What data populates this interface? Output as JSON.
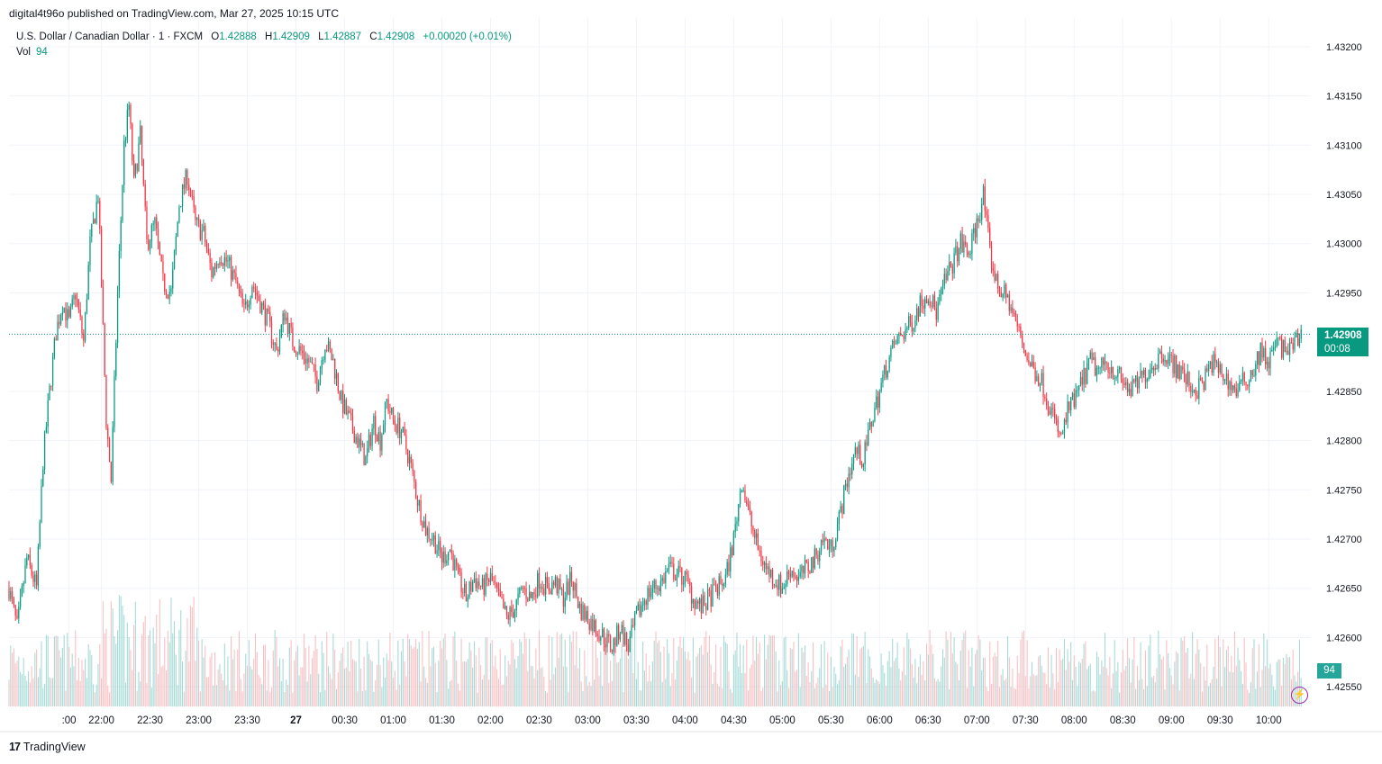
{
  "publisher": "digital4t96o published on TradingView.com, Mar 27, 2025 10:15 UTC",
  "legend": {
    "symbol": "U.S. Dollar / Canadian Dollar · 1 · FXCM",
    "o_label": "O",
    "o_val": "1.42888",
    "h_label": "H",
    "h_val": "1.42909",
    "l_label": "L",
    "l_val": "1.42887",
    "c_label": "C",
    "c_val": "1.42908",
    "change": "+0.00020 (+0.01%)"
  },
  "volume_legend": {
    "label": "Vol",
    "value": "94"
  },
  "price_tag": {
    "price": "1.42908",
    "countdown": "00:08"
  },
  "volume_tag": "94",
  "footer": {
    "logo_mark": "17",
    "logo_text": "TradingView"
  },
  "colors": {
    "up": "#089981",
    "down": "#f23645",
    "vol_up": "#80cbc4",
    "vol_down": "#f7a5a9",
    "grid": "#f0f3fa",
    "accent_purple": "#9c27b0"
  },
  "icons": {
    "lightning": "lightning-icon",
    "logo": "tradingview-logo-icon"
  },
  "chart_data": {
    "type": "candlestick",
    "interval": "1 minute",
    "ylim": [
      1.4253,
      1.4322
    ],
    "y_ticks": [
      "1.42550",
      "1.42600",
      "1.42650",
      "1.42700",
      "1.42750",
      "1.42800",
      "1.42850",
      "1.42950",
      "1.43000",
      "1.43050",
      "1.43100",
      "1.43150",
      "1.43200"
    ],
    "x_ticks": [
      ":00",
      "22:00",
      "22:30",
      "23:00",
      "23:30",
      "27",
      "00:30",
      "01:00",
      "01:30",
      "02:00",
      "02:30",
      "03:00",
      "03:30",
      "04:00",
      "04:30",
      "05:00",
      "05:30",
      "06:00",
      "06:30",
      "07:00",
      "07:30",
      "08:00",
      "08:30",
      "09:00",
      "09:30",
      "10:00"
    ],
    "x_tick_minutes": [
      -20,
      0,
      30,
      60,
      90,
      120,
      150,
      180,
      210,
      240,
      270,
      300,
      330,
      360,
      390,
      420,
      450,
      480,
      510,
      540,
      570,
      600,
      630,
      660,
      690,
      720
    ],
    "x_range_minutes": [
      -57,
      746
    ],
    "last_price": 1.42908,
    "close_path": [
      [
        -57,
        1.4265
      ],
      [
        -52,
        1.4261
      ],
      [
        -46,
        1.4268
      ],
      [
        -40,
        1.4265
      ],
      [
        -36,
        1.4278
      ],
      [
        -32,
        1.4285
      ],
      [
        -28,
        1.4291
      ],
      [
        -24,
        1.4294
      ],
      [
        -20,
        1.4292
      ],
      [
        -16,
        1.4295
      ],
      [
        -11,
        1.429
      ],
      [
        -7,
        1.43
      ],
      [
        -2,
        1.4305
      ],
      [
        3,
        1.4282
      ],
      [
        6,
        1.4276
      ],
      [
        10,
        1.4295
      ],
      [
        14,
        1.431
      ],
      [
        17,
        1.4314
      ],
      [
        20,
        1.4306
      ],
      [
        24,
        1.4311
      ],
      [
        28,
        1.43
      ],
      [
        33,
        1.4302
      ],
      [
        38,
        1.4296
      ],
      [
        43,
        1.4295
      ],
      [
        48,
        1.4304
      ],
      [
        53,
        1.4307
      ],
      [
        58,
        1.4302
      ],
      [
        63,
        1.4301
      ],
      [
        68,
        1.4297
      ],
      [
        73,
        1.4299
      ],
      [
        78,
        1.4298
      ],
      [
        83,
        1.4296
      ],
      [
        88,
        1.4293
      ],
      [
        93,
        1.4296
      ],
      [
        98,
        1.4294
      ],
      [
        103,
        1.4292
      ],
      [
        108,
        1.4289
      ],
      [
        113,
        1.4293
      ],
      [
        118,
        1.429
      ],
      [
        123,
        1.4289
      ],
      [
        128,
        1.4288
      ],
      [
        133,
        1.4286
      ],
      [
        138,
        1.429
      ],
      [
        143,
        1.4288
      ],
      [
        148,
        1.4284
      ],
      [
        153,
        1.4282
      ],
      [
        158,
        1.428
      ],
      [
        163,
        1.4278
      ],
      [
        168,
        1.4282
      ],
      [
        172,
        1.428
      ],
      [
        176,
        1.4284
      ],
      [
        180,
        1.4282
      ],
      [
        185,
        1.4281
      ],
      [
        190,
        1.4278
      ],
      [
        195,
        1.4274
      ],
      [
        200,
        1.4271
      ],
      [
        205,
        1.427
      ],
      [
        210,
        1.4268
      ],
      [
        215,
        1.4269
      ],
      [
        220,
        1.4266
      ],
      [
        225,
        1.4264
      ],
      [
        230,
        1.4266
      ],
      [
        235,
        1.4265
      ],
      [
        240,
        1.4266
      ],
      [
        245,
        1.4264
      ],
      [
        250,
        1.4262
      ],
      [
        255,
        1.4263
      ],
      [
        260,
        1.4265
      ],
      [
        265,
        1.4264
      ],
      [
        270,
        1.4266
      ],
      [
        275,
        1.4265
      ],
      [
        280,
        1.42655
      ],
      [
        285,
        1.4264
      ],
      [
        290,
        1.4266
      ],
      [
        295,
        1.4263
      ],
      [
        300,
        1.4262
      ],
      [
        305,
        1.4261
      ],
      [
        310,
        1.426
      ],
      [
        315,
        1.4259
      ],
      [
        320,
        1.4261
      ],
      [
        325,
        1.4259
      ],
      [
        330,
        1.4262
      ],
      [
        335,
        1.4264
      ],
      [
        340,
        1.4265
      ],
      [
        345,
        1.42655
      ],
      [
        350,
        1.4267
      ],
      [
        355,
        1.42665
      ],
      [
        360,
        1.4266
      ],
      [
        365,
        1.4264
      ],
      [
        370,
        1.4263
      ],
      [
        375,
        1.4264
      ],
      [
        380,
        1.4265
      ],
      [
        385,
        1.4266
      ],
      [
        390,
        1.427
      ],
      [
        395,
        1.4276
      ],
      [
        400,
        1.4272
      ],
      [
        405,
        1.4269
      ],
      [
        410,
        1.4267
      ],
      [
        415,
        1.4266
      ],
      [
        420,
        1.4265
      ],
      [
        425,
        1.4267
      ],
      [
        430,
        1.4266
      ],
      [
        435,
        1.4267
      ],
      [
        440,
        1.4268
      ],
      [
        445,
        1.427
      ],
      [
        450,
        1.4269
      ],
      [
        455,
        1.4272
      ],
      [
        460,
        1.4276
      ],
      [
        465,
        1.4279
      ],
      [
        470,
        1.4278
      ],
      [
        475,
        1.4282
      ],
      [
        480,
        1.4285
      ],
      [
        485,
        1.4288
      ],
      [
        490,
        1.429
      ],
      [
        495,
        1.4291
      ],
      [
        500,
        1.4292
      ],
      [
        505,
        1.4294
      ],
      [
        510,
        1.4295
      ],
      [
        515,
        1.4293
      ],
      [
        520,
        1.4296
      ],
      [
        525,
        1.4298
      ],
      [
        530,
        1.43
      ],
      [
        535,
        1.4299
      ],
      [
        540,
        1.4302
      ],
      [
        544,
        1.4305
      ],
      [
        548,
        1.4299
      ],
      [
        552,
        1.4296
      ],
      [
        556,
        1.4295
      ],
      [
        560,
        1.4294
      ],
      [
        564,
        1.4292
      ],
      [
        568,
        1.429
      ],
      [
        572,
        1.4288
      ],
      [
        576,
        1.4287
      ],
      [
        580,
        1.4286
      ],
      [
        584,
        1.4284
      ],
      [
        588,
        1.4282
      ],
      [
        592,
        1.428
      ],
      [
        596,
        1.4283
      ],
      [
        600,
        1.4284
      ],
      [
        605,
        1.4286
      ],
      [
        610,
        1.4288
      ],
      [
        615,
        1.4287
      ],
      [
        620,
        1.4288
      ],
      [
        625,
        1.4287
      ],
      [
        630,
        1.4286
      ],
      [
        635,
        1.4285
      ],
      [
        640,
        1.4286
      ],
      [
        645,
        1.4287
      ],
      [
        650,
        1.4288
      ],
      [
        655,
        1.4289
      ],
      [
        660,
        1.4288
      ],
      [
        665,
        1.4287
      ],
      [
        670,
        1.4286
      ],
      [
        675,
        1.4285
      ],
      [
        680,
        1.4286
      ],
      [
        685,
        1.4288
      ],
      [
        690,
        1.4287
      ],
      [
        695,
        1.4286
      ],
      [
        700,
        1.4285
      ],
      [
        705,
        1.4286
      ],
      [
        710,
        1.4287
      ],
      [
        715,
        1.4289
      ],
      [
        720,
        1.4288
      ],
      [
        725,
        1.429
      ],
      [
        730,
        1.4289
      ],
      [
        735,
        1.42895
      ],
      [
        740,
        1.42908
      ],
      [
        746,
        1.42908
      ]
    ]
  }
}
